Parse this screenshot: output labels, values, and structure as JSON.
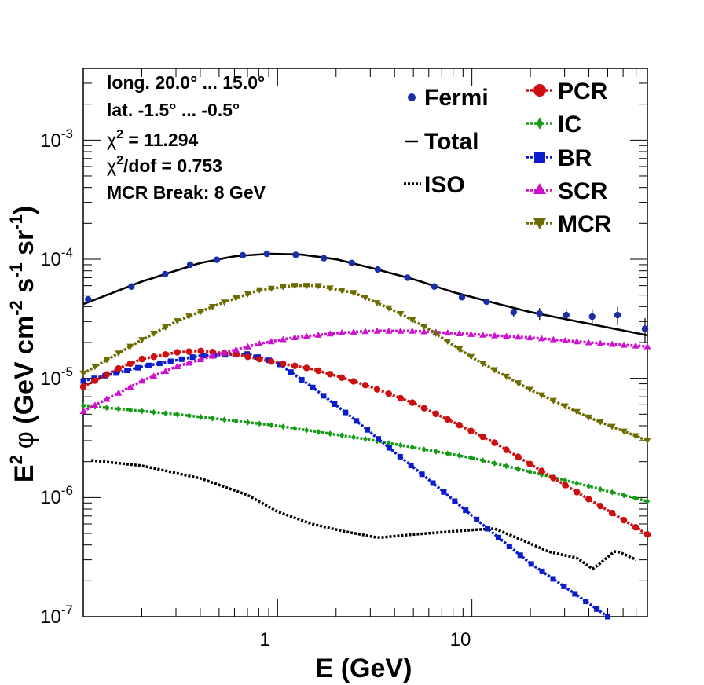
{
  "chart_data": {
    "type": "line",
    "xlabel": "E (GeV)",
    "ylabel": {
      "main": "E",
      "main_sup": "2",
      "phi": "φ",
      "units_prefix": " (GeV cm",
      "units_sup1": "-2",
      "units_mid1": " s",
      "units_sup2": "-1",
      "units_mid2": " sr",
      "units_sup3": "-1",
      "units_end": ")"
    },
    "x_scale": "log",
    "y_scale": "log",
    "xlim": [
      0.1,
      80
    ],
    "ylim": [
      1e-07,
      0.004
    ],
    "x_tick_labels": [
      {
        "x": 1,
        "label": "1"
      },
      {
        "x": 10,
        "label": "10"
      }
    ],
    "y_tick_labels": [
      {
        "y": 1e-07,
        "base": "10",
        "exp": "-7"
      },
      {
        "y": 1e-06,
        "base": "10",
        "exp": "-6"
      },
      {
        "y": 1e-05,
        "base": "10",
        "exp": "-5"
      },
      {
        "y": 0.0001,
        "base": "10",
        "exp": "-4"
      },
      {
        "y": 0.001,
        "base": "10",
        "exp": "-3"
      }
    ],
    "annotations": [
      {
        "text": "long. 20.0° ... 15.0°"
      },
      {
        "text": "lat. -1.5° ... -0.5°"
      },
      {
        "text": "χ",
        "sup": "2",
        "rest": " = 11.294"
      },
      {
        "text": "χ",
        "sup": "2",
        "rest": "/dof = 0.753"
      },
      {
        "text": "MCR Break:  8 GeV"
      }
    ],
    "legend_position": "top-right",
    "legend": [
      {
        "label": "Fermi",
        "style": "points"
      },
      {
        "label": "Total",
        "style": "line"
      },
      {
        "label": "ISO",
        "style": "dotted"
      },
      {
        "label": "PCR",
        "style": "circle"
      },
      {
        "label": "IC",
        "style": "diamond"
      },
      {
        "label": "BR",
        "style": "square"
      },
      {
        "label": "SCR",
        "style": "triangle-up"
      },
      {
        "label": "MCR",
        "style": "triangle-down"
      }
    ],
    "series": [
      {
        "name": "Fermi",
        "color": "#1a2ea8",
        "marker": "circle",
        "errorbars": true,
        "x": [
          0.106,
          0.177,
          0.264,
          0.355,
          0.487,
          0.662,
          0.881,
          1.24,
          1.73,
          2.41,
          3.28,
          4.66,
          6.41,
          8.89,
          11.9,
          16.4,
          22.3,
          30.6,
          41.6,
          56.2,
          77.8
        ],
        "y": [
          4.6e-05,
          5.9e-05,
          7.5e-05,
          9e-05,
          9.9e-05,
          0.000108,
          0.000111,
          0.000109,
          0.000102,
          9.3e-05,
          8.2e-05,
          7e-05,
          5.9e-05,
          4.8e-05,
          4.4e-05,
          3.6e-05,
          3.5e-05,
          3.4e-05,
          3.3e-05,
          3.4e-05,
          2.6e-05
        ],
        "yerr": [
          1e-06,
          1e-06,
          1e-06,
          1e-06,
          1e-06,
          1e-06,
          1e-06,
          1e-06,
          1e-06,
          1e-06,
          1e-06,
          1e-06,
          2e-06,
          2e-06,
          2e-06,
          3e-06,
          4e-06,
          4e-06,
          5e-06,
          6e-06,
          6e-06
        ]
      },
      {
        "name": "Total",
        "color": "#000000",
        "style": "solid",
        "x": [
          0.1,
          0.2,
          0.4,
          0.6,
          0.9,
          1.3,
          2,
          3,
          5,
          8,
          13,
          20,
          35,
          80
        ],
        "y": [
          4.2e-05,
          6.5e-05,
          9.3e-05,
          0.000106,
          0.000111,
          0.00011,
          0.0001,
          8.5e-05,
          6.8e-05,
          5.3e-05,
          4.3e-05,
          3.6e-05,
          3e-05,
          2.3e-05
        ]
      },
      {
        "name": "ISO",
        "color": "#000000",
        "style": "dotted",
        "x": [
          0.11,
          0.2,
          0.4,
          0.7,
          1.0,
          1.5,
          2.2,
          3.3,
          5,
          8,
          13,
          17,
          25,
          35,
          42,
          55,
          70
        ],
        "y": [
          2.05e-06,
          1.85e-06,
          1.45e-06,
          1.05e-06,
          7.6e-07,
          6e-07,
          5.2e-07,
          4.6e-07,
          4.9e-07,
          5.2e-07,
          5.5e-07,
          4.6e-07,
          3.5e-07,
          3.1e-07,
          2.5e-07,
          3.6e-07,
          3e-07
        ]
      },
      {
        "name": "PCR",
        "color": "#cc1010",
        "marker": "circle",
        "x": [
          0.1,
          0.15,
          0.2,
          0.3,
          0.4,
          0.6,
          1.0,
          1.5,
          2,
          3,
          5,
          8,
          13,
          20,
          35,
          50,
          80
        ],
        "y": [
          8.5e-06,
          1.2e-05,
          1.45e-05,
          1.65e-05,
          1.7e-05,
          1.6e-05,
          1.35e-05,
          1.2e-05,
          1.05e-05,
          8.5e-06,
          6.2e-06,
          4.3e-06,
          2.9e-06,
          1.9e-06,
          1.1e-06,
          7.8e-07,
          4.9e-07
        ]
      },
      {
        "name": "IC",
        "color": "#149a14",
        "marker": "diamond",
        "x": [
          0.1,
          0.3,
          1,
          3,
          10,
          30,
          80
        ],
        "y": [
          5.9e-06,
          5e-06,
          4e-06,
          3.05e-06,
          2.15e-06,
          1.4e-06,
          9.3e-07
        ]
      },
      {
        "name": "BR",
        "color": "#0a1ccc",
        "marker": "square",
        "x": [
          0.1,
          0.2,
          0.4,
          0.7,
          1.0,
          1.5,
          2.5,
          4,
          7,
          12,
          20,
          35,
          50
        ],
        "y": [
          9.5e-06,
          1.25e-05,
          1.55e-05,
          1.6e-05,
          1.35e-05,
          8.5e-06,
          4.5e-06,
          2.4e-06,
          1.15e-06,
          5.5e-07,
          2.8e-07,
          1.5e-07,
          1e-07
        ]
      },
      {
        "name": "SCR",
        "color": "#cc10cc",
        "marker": "triangle-up",
        "x": [
          0.1,
          0.2,
          0.3,
          0.5,
          0.8,
          1.2,
          2,
          3,
          5,
          10,
          20,
          40,
          80
        ],
        "y": [
          5.3e-06,
          9.5e-06,
          1.25e-05,
          1.6e-05,
          1.95e-05,
          2.2e-05,
          2.4e-05,
          2.5e-05,
          2.5e-05,
          2.35e-05,
          2.2e-05,
          2e-05,
          1.85e-05
        ]
      },
      {
        "name": "MCR",
        "color": "#6b6b00",
        "marker": "triangle-down",
        "x": [
          0.1,
          0.2,
          0.3,
          0.5,
          0.8,
          1.2,
          1.6,
          2.5,
          4,
          6,
          10,
          20,
          40,
          80
        ],
        "y": [
          1.1e-05,
          2.1e-05,
          3e-05,
          4.2e-05,
          5.5e-05,
          6e-05,
          6e-05,
          5.2e-05,
          3.7e-05,
          2.6e-05,
          1.5e-05,
          8e-06,
          4.7e-06,
          3e-06
        ]
      }
    ]
  }
}
